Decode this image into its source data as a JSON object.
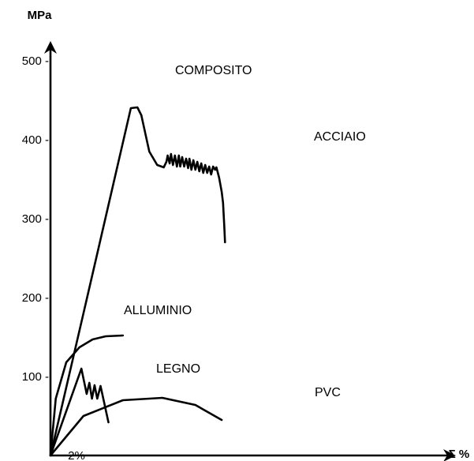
{
  "chart_data": {
    "type": "line",
    "title": "",
    "xlabel": "Σ %",
    "ylabel": "MPa",
    "x_tick_labels": [
      "2%"
    ],
    "yticks": [
      100,
      200,
      300,
      400,
      500
    ],
    "ylim": [
      0,
      500
    ],
    "y_tick_suffix": " -",
    "grid": false,
    "legend": "none",
    "line_color": "#000000",
    "series": [
      {
        "name": "COMPOSITO",
        "x": [
          0,
          2.5,
          6.1,
          6.6,
          6.9
        ],
        "y": [
          0,
          180,
          440,
          441,
          431
        ]
      },
      {
        "name": "ACCIAIO",
        "x": [
          6.9,
          7.5,
          8.1,
          8.6,
          8.8,
          8.9,
          9.05,
          9.15,
          9.3,
          9.45,
          9.6,
          9.75,
          9.85,
          10.0,
          10.15,
          10.3,
          10.45,
          10.55,
          10.7,
          10.85,
          11.0,
          11.15,
          11.3,
          11.45,
          11.6,
          11.75,
          11.9,
          12.05,
          12.2,
          12.35,
          12.5,
          12.6,
          12.8,
          13.0,
          13.1,
          13.2,
          13.25
        ],
        "y": [
          431,
          385,
          368,
          365,
          372,
          380,
          370,
          382,
          368,
          380,
          366,
          380,
          366,
          378,
          366,
          376,
          364,
          376,
          362,
          374,
          362,
          372,
          360,
          370,
          358,
          368,
          358,
          366,
          356,
          366,
          362,
          365,
          352,
          334,
          320,
          290,
          270
        ]
      },
      {
        "name": "ALLUMINIO",
        "x": [
          0,
          0.4,
          1.2,
          2.2,
          3.2,
          4.2,
          5.5
        ],
        "y": [
          0,
          72,
          118,
          137,
          147,
          151,
          152
        ]
      },
      {
        "name": "LEGNO",
        "x": [
          0,
          2.35,
          2.75,
          2.95,
          3.15,
          3.35,
          3.55,
          3.8,
          4.4
        ],
        "y": [
          0,
          110,
          78,
          92,
          72,
          89,
          72,
          88,
          42
        ]
      },
      {
        "name": "PVC",
        "x": [
          0,
          2.5,
          5.5,
          8.5,
          11.0,
          13.0
        ],
        "y": [
          0,
          50,
          70,
          73,
          64,
          45
        ]
      }
    ]
  }
}
